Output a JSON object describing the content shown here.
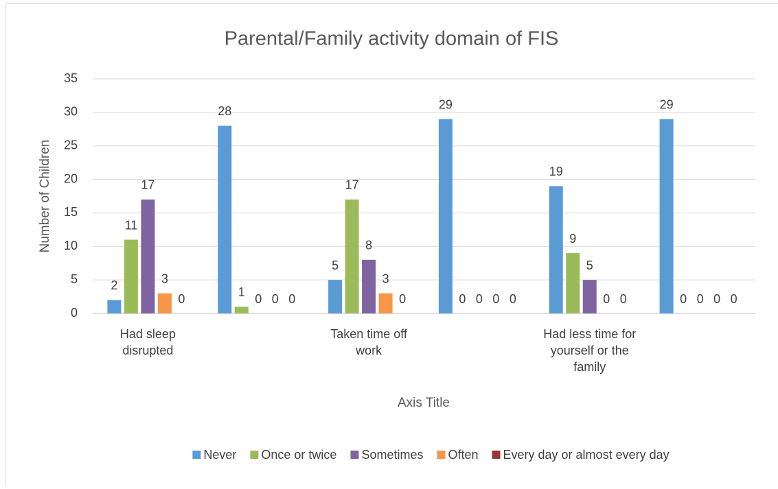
{
  "chart_data": {
    "type": "bar",
    "title": "Parental/Family activity domain of FIS",
    "y_label": "Number of Children",
    "x_label": "Axis Title",
    "categories": [
      "Had sleep disrupted",
      null,
      "Taken time off work",
      null,
      "Had less time for yourself or the family",
      null
    ],
    "series": [
      {
        "name": "Never",
        "color": "#5b9bd5",
        "values": [
          2,
          28,
          5,
          29,
          19,
          29
        ]
      },
      {
        "name": "Once or twice",
        "color": "#9bbb59",
        "values": [
          11,
          1,
          17,
          0,
          9,
          0
        ]
      },
      {
        "name": "Sometimes",
        "color": "#8064a2",
        "values": [
          17,
          0,
          8,
          0,
          5,
          0
        ]
      },
      {
        "name": "Often",
        "color": "#f79646",
        "values": [
          3,
          0,
          3,
          0,
          0,
          0
        ]
      },
      {
        "name": "Every day or almost every day",
        "color": "#953735",
        "values": [
          0,
          0,
          0,
          0,
          0,
          0
        ]
      }
    ],
    "ylim": [
      0,
      35
    ],
    "yticks": [
      0,
      5,
      10,
      15,
      20,
      25,
      30,
      35
    ],
    "grid": true,
    "legend": "bottom"
  }
}
